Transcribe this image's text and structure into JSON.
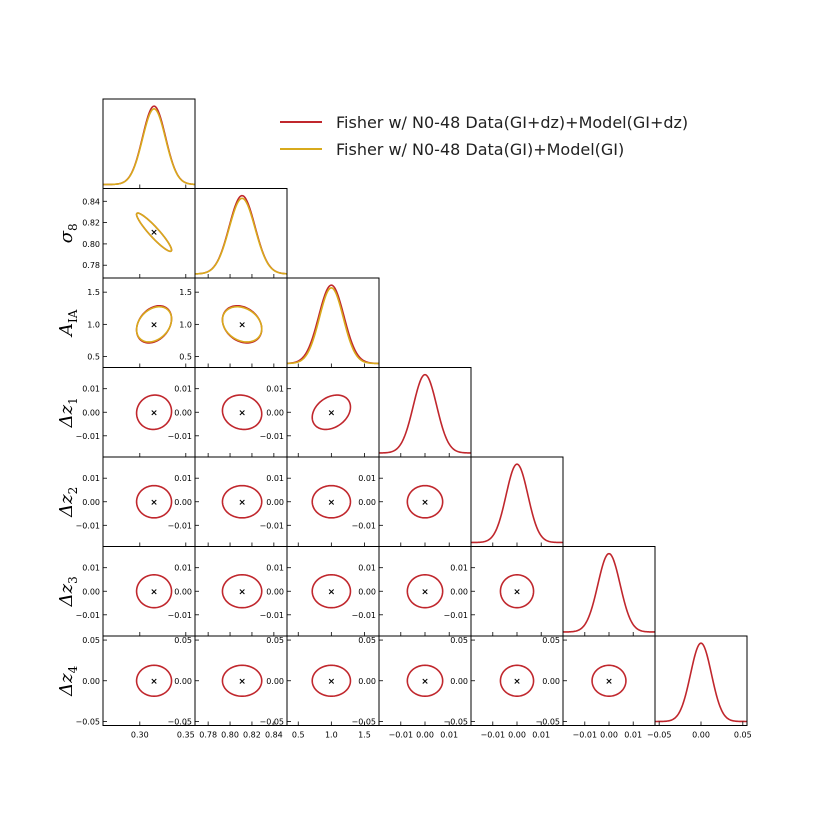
{
  "chart_data": {
    "type": "corner",
    "params": [
      {
        "symbol": "",
        "sub": "",
        "fiducial": 0.3155,
        "range": [
          0.26,
          0.36
        ],
        "ticks": [
          0.3,
          0.35
        ],
        "tick_labels": [
          "0.30",
          "0.35"
        ],
        "sigma_red": 0.0125,
        "sigma_yellow": 0.0125
      },
      {
        "symbol": "σ",
        "sub": "8",
        "fiducial": 0.811,
        "range": [
          0.768,
          0.852
        ],
        "ticks": [
          0.78,
          0.8,
          0.82,
          0.84
        ],
        "tick_labels": [
          "0.78",
          "0.80",
          "0.82",
          "0.84"
        ],
        "sigma_red": 0.0118,
        "sigma_yellow": 0.0118
      },
      {
        "symbol": "A",
        "sub": "IA",
        "fiducial": 1.0,
        "range": [
          0.33,
          1.72
        ],
        "ticks": [
          0.5,
          1.0,
          1.5
        ],
        "tick_labels": [
          "0.5",
          "1.0",
          "1.5"
        ],
        "sigma_red": 0.19,
        "sigma_yellow": 0.18
      },
      {
        "symbol": "Δz",
        "sub": "1",
        "fiducial": 0.0,
        "range": [
          -0.019,
          0.019
        ],
        "ticks": [
          -0.01,
          0.0,
          0.01
        ],
        "tick_labels": [
          "−0.01",
          "0.00",
          "0.01"
        ],
        "sigma_red": 0.0048,
        "sigma_yellow": null
      },
      {
        "symbol": "Δz",
        "sub": "2",
        "fiducial": 0.0,
        "range": [
          -0.019,
          0.019
        ],
        "ticks": [
          -0.01,
          0.0,
          0.01
        ],
        "tick_labels": [
          "−0.01",
          "0.00",
          "0.01"
        ],
        "sigma_red": 0.0045,
        "sigma_yellow": null
      },
      {
        "symbol": "Δz",
        "sub": "3",
        "fiducial": 0.0,
        "range": [
          -0.019,
          0.019
        ],
        "ticks": [
          -0.01,
          0.0,
          0.01
        ],
        "tick_labels": [
          "−0.01",
          "0.00",
          "0.01"
        ],
        "sigma_red": 0.0046,
        "sigma_yellow": null
      },
      {
        "symbol": "Δz",
        "sub": "4",
        "fiducial": 0.0,
        "range": [
          -0.055,
          0.055
        ],
        "ticks": [
          -0.05,
          0.0,
          0.05
        ],
        "tick_labels": [
          "−0.05",
          "0.00",
          "0.05"
        ],
        "sigma_red": 0.0125,
        "sigma_yellow": null
      }
    ],
    "correlations": {
      "0-1": -0.93,
      "0-2": 0.3,
      "1-2": -0.25,
      "2-3": 0.3,
      "1-3": -0.1,
      "0-3": 0.05
    },
    "legend_position": "top-right",
    "series": [
      {
        "name": "Fisher w/ N0-48 Data(GI+dz)+Model(GI+dz)",
        "color": "#c0272d"
      },
      {
        "name": "Fisher w/ N0-48 Data(GI)+Model(GI)",
        "color": "#d8aa1c"
      }
    ],
    "fiducial_marker": "×"
  }
}
